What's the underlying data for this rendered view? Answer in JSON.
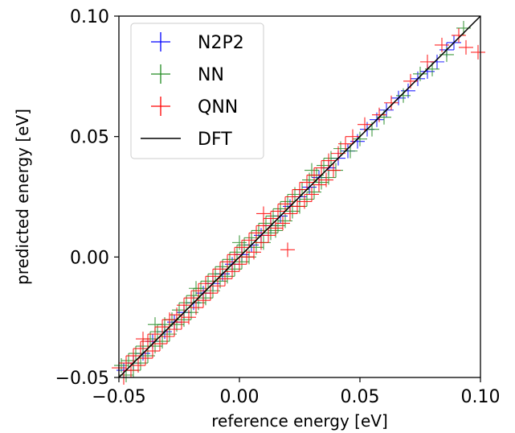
{
  "chart_data": {
    "type": "scatter",
    "xlabel": "reference energy [eV]",
    "ylabel": "predicted energy [eV]",
    "xlim": [
      -0.05,
      0.1
    ],
    "ylim": [
      -0.05,
      0.1
    ],
    "xticks": [
      "−0.05",
      "0.00",
      "0.05",
      "0.10"
    ],
    "yticks": [
      "−0.05",
      "0.00",
      "0.05",
      "0.10"
    ],
    "legend_position": "top-left",
    "grid": false,
    "marker": "plus",
    "series": [
      {
        "name": "N2P2",
        "color": "#0000ff",
        "x": [
          -0.048,
          -0.044,
          -0.04,
          -0.036,
          -0.031,
          -0.027,
          -0.023,
          -0.019,
          -0.015,
          -0.011,
          -0.007,
          -0.003,
          0.001,
          0.005,
          0.009,
          0.013,
          0.017,
          0.021,
          0.025,
          0.029,
          0.033,
          0.037,
          0.041,
          0.045,
          0.049,
          0.053,
          0.057,
          0.061,
          0.066,
          0.07,
          0.074,
          0.078,
          0.082,
          0.086,
          0.089
        ],
        "y": [
          -0.047,
          -0.044,
          -0.04,
          -0.035,
          -0.031,
          -0.027,
          -0.023,
          -0.019,
          -0.015,
          -0.011,
          -0.007,
          -0.003,
          0.001,
          0.005,
          0.009,
          0.013,
          0.017,
          0.021,
          0.025,
          0.029,
          0.033,
          0.037,
          0.041,
          0.044,
          0.048,
          0.053,
          0.057,
          0.061,
          0.066,
          0.069,
          0.074,
          0.077,
          0.081,
          0.086,
          0.089
        ]
      },
      {
        "name": "NN",
        "color": "#228b22",
        "x": [
          -0.049,
          -0.047,
          -0.046,
          -0.044,
          -0.043,
          -0.041,
          -0.04,
          -0.038,
          -0.037,
          -0.035,
          -0.034,
          -0.032,
          -0.031,
          -0.029,
          -0.028,
          -0.026,
          -0.025,
          -0.023,
          -0.022,
          -0.02,
          -0.019,
          -0.017,
          -0.016,
          -0.014,
          -0.013,
          -0.011,
          -0.01,
          -0.008,
          -0.007,
          -0.005,
          -0.004,
          -0.002,
          -0.001,
          0.001,
          0.002,
          0.004,
          0.005,
          0.007,
          0.008,
          0.01,
          0.011,
          0.013,
          0.014,
          0.016,
          0.017,
          0.019,
          0.02,
          0.022,
          0.023,
          0.025,
          0.026,
          0.028,
          0.029,
          0.031,
          0.032,
          0.034,
          0.035,
          0.037,
          0.038,
          0.04,
          0.042,
          0.046,
          0.05,
          0.055,
          0.06,
          0.068,
          0.075,
          0.08,
          0.086,
          0.093,
          -0.035,
          -0.018,
          0.0,
          0.015,
          0.03
        ],
        "y": [
          -0.045,
          -0.049,
          -0.043,
          -0.047,
          -0.04,
          -0.044,
          -0.037,
          -0.041,
          -0.034,
          -0.037,
          -0.031,
          -0.035,
          -0.028,
          -0.032,
          -0.026,
          -0.028,
          -0.022,
          -0.026,
          -0.019,
          -0.023,
          -0.016,
          -0.019,
          -0.013,
          -0.017,
          -0.01,
          -0.014,
          -0.007,
          -0.01,
          -0.004,
          -0.008,
          -0.001,
          -0.005,
          0.002,
          -0.002,
          0.005,
          0.0,
          0.008,
          0.004,
          0.011,
          0.006,
          0.014,
          0.01,
          0.017,
          0.013,
          0.02,
          0.015,
          0.023,
          0.019,
          0.026,
          0.021,
          0.028,
          0.024,
          0.032,
          0.027,
          0.034,
          0.031,
          0.038,
          0.033,
          0.041,
          0.036,
          0.045,
          0.044,
          0.049,
          0.053,
          0.058,
          0.067,
          0.076,
          0.078,
          0.084,
          0.095,
          -0.028,
          -0.013,
          0.006,
          0.011,
          0.036
        ]
      },
      {
        "name": "QNN",
        "color": "#ff0000",
        "x": [
          -0.05,
          -0.048,
          -0.047,
          -0.045,
          -0.044,
          -0.042,
          -0.041,
          -0.039,
          -0.038,
          -0.036,
          -0.035,
          -0.033,
          -0.032,
          -0.03,
          -0.029,
          -0.027,
          -0.026,
          -0.024,
          -0.023,
          -0.021,
          -0.02,
          -0.018,
          -0.017,
          -0.015,
          -0.014,
          -0.012,
          -0.011,
          -0.009,
          -0.008,
          -0.006,
          -0.005,
          -0.003,
          -0.002,
          0.0,
          0.001,
          0.003,
          0.004,
          0.006,
          0.007,
          0.009,
          0.01,
          0.012,
          0.013,
          0.015,
          0.016,
          0.018,
          0.019,
          0.021,
          0.022,
          0.024,
          0.025,
          0.027,
          0.028,
          0.03,
          0.031,
          0.033,
          0.034,
          0.036,
          0.037,
          0.039,
          0.041,
          0.044,
          0.047,
          0.052,
          0.058,
          0.063,
          0.071,
          0.078,
          0.084,
          0.091,
          0.094,
          0.099,
          0.02,
          -0.04,
          0.01
        ],
        "y": [
          -0.046,
          -0.05,
          -0.044,
          -0.047,
          -0.041,
          -0.045,
          -0.038,
          -0.042,
          -0.035,
          -0.039,
          -0.032,
          -0.036,
          -0.029,
          -0.033,
          -0.026,
          -0.03,
          -0.024,
          -0.027,
          -0.02,
          -0.025,
          -0.017,
          -0.021,
          -0.014,
          -0.018,
          -0.011,
          -0.015,
          -0.008,
          -0.012,
          -0.005,
          -0.009,
          -0.002,
          -0.006,
          0.001,
          -0.003,
          0.004,
          0.0,
          0.007,
          0.002,
          0.01,
          0.006,
          0.013,
          0.009,
          0.016,
          0.012,
          0.019,
          0.014,
          0.022,
          0.018,
          0.025,
          0.021,
          0.028,
          0.023,
          0.031,
          0.026,
          0.034,
          0.03,
          0.037,
          0.032,
          0.04,
          0.036,
          0.043,
          0.047,
          0.05,
          0.055,
          0.059,
          0.064,
          0.073,
          0.081,
          0.088,
          0.092,
          0.087,
          0.085,
          0.003,
          -0.034,
          0.018
        ]
      }
    ],
    "reference_line": {
      "name": "DFT",
      "color": "#000000",
      "x": [
        -0.05,
        0.1
      ],
      "y": [
        -0.05,
        0.1
      ]
    }
  }
}
